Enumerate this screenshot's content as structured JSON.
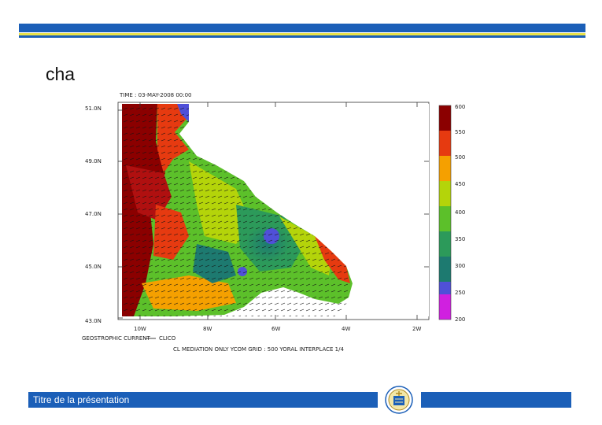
{
  "slide": {
    "title": "cha",
    "footer_text": "Titre de la présentation"
  },
  "figure": {
    "time_label": "TIME : 03-MAY-2008 00:00",
    "lat_labels": [
      "51.0N",
      "49.0N",
      "47.0N",
      "45.0N",
      "43.0N"
    ],
    "lon_labels": [
      "10W",
      "8W",
      "6W",
      "4W",
      "2W"
    ],
    "colorbar_labels": [
      "600",
      "550",
      "500",
      "450",
      "400",
      "350",
      "300",
      "250",
      "200"
    ],
    "colorbar_colors": [
      "#8b0000",
      "#e63a10",
      "#f5a000",
      "#b4d40a",
      "#5cc02a",
      "#2c9a5a",
      "#1d7a70",
      "#5050d8",
      "#d020e0"
    ],
    "vector_label": "GEOSTROPHIC CURRENT",
    "vector_unit": "CLICO",
    "caption": "CL MEDIATION ONLY YCOM GRID : 500 YORAL INTERPLACE 1/4"
  },
  "colors": {
    "brand_blue": "#1b5fb8",
    "brand_yellow": "#e9e24a"
  }
}
